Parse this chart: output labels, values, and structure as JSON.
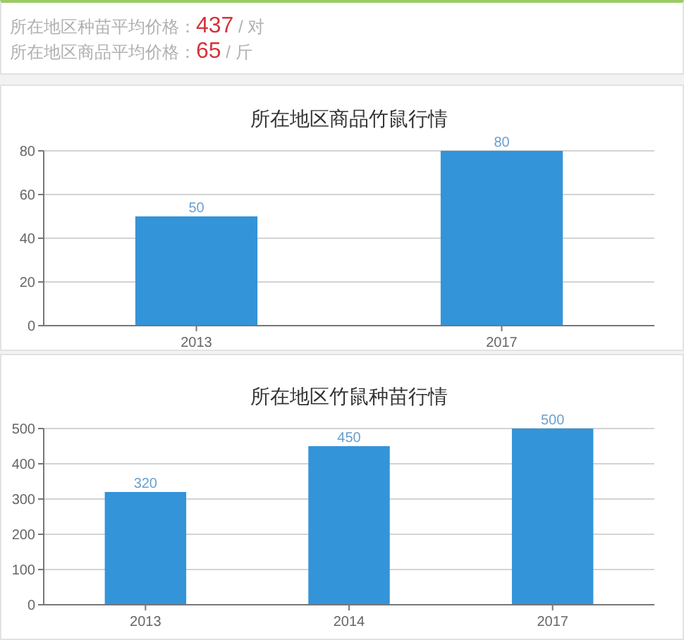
{
  "chart_data": [
    {
      "type": "other",
      "annotations": [
        "所在地区种苗平均价格：437 / 对",
        "所在地区商品平均价格：65 / 斤"
      ]
    },
    {
      "type": "bar",
      "title": "所在地区商品竹鼠行情",
      "categories": [
        "2013",
        "2017"
      ],
      "values": [
        50,
        80
      ],
      "color": "#3394d9",
      "ylim": [
        0,
        80
      ],
      "yticks": [
        0,
        20,
        40,
        60,
        80
      ],
      "grid": "y",
      "data_labels": true
    },
    {
      "type": "bar",
      "title": "所在地区竹鼠种苗行情",
      "categories": [
        "2013",
        "2014",
        "2017"
      ],
      "values": [
        320,
        450,
        500
      ],
      "color": "#3394d9",
      "ylim": [
        0,
        500
      ],
      "yticks": [
        0,
        100,
        200,
        300,
        400,
        500
      ],
      "grid": "y",
      "data_labels": true
    }
  ]
}
